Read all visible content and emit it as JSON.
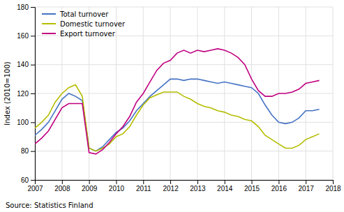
{
  "chart_data": {
    "type": "line",
    "ylabel": "Index (2010=100)",
    "annotations": [
      "Source: Statistics Finland"
    ],
    "x": [
      2007.0,
      2007.25,
      2007.5,
      2007.75,
      2008.0,
      2008.25,
      2008.5,
      2008.75,
      2009.0,
      2009.25,
      2009.5,
      2009.75,
      2010.0,
      2010.25,
      2010.5,
      2010.75,
      2011.0,
      2011.25,
      2011.5,
      2011.75,
      2012.0,
      2012.25,
      2012.5,
      2012.75,
      2013.0,
      2013.25,
      2013.5,
      2013.75,
      2014.0,
      2014.25,
      2014.5,
      2014.75,
      2015.0,
      2015.25,
      2015.5,
      2015.75,
      2016.0,
      2016.25,
      2016.5,
      2016.75,
      2017.0,
      2017.25,
      2017.5
    ],
    "series": [
      {
        "name": "Total turnover",
        "color": "#4472c4",
        "values": [
          91,
          95,
          100,
          108,
          116,
          120,
          118,
          115,
          82,
          80,
          83,
          88,
          93,
          96,
          101,
          108,
          113,
          118,
          122,
          126,
          130,
          130,
          129,
          130,
          130,
          129,
          128,
          127,
          128,
          127,
          126,
          125,
          124,
          120,
          112,
          105,
          100,
          99,
          100,
          103,
          108,
          108,
          109
        ]
      },
      {
        "name": "Domestic turnover",
        "color": "#b5bd00",
        "values": [
          96,
          100,
          105,
          114,
          120,
          124,
          126,
          118,
          82,
          80,
          82,
          85,
          90,
          92,
          97,
          105,
          112,
          117,
          119,
          121,
          121,
          121,
          118,
          116,
          113,
          111,
          110,
          108,
          107,
          105,
          104,
          102,
          101,
          97,
          91,
          88,
          85,
          82,
          82,
          84,
          88,
          90,
          92
        ]
      },
      {
        "name": "Export turnover",
        "color": "#c00080",
        "values": [
          85,
          89,
          94,
          102,
          110,
          113,
          113,
          113,
          79,
          78,
          81,
          86,
          92,
          97,
          104,
          114,
          120,
          128,
          136,
          141,
          143,
          148,
          150,
          148,
          150,
          149,
          150,
          151,
          150,
          148,
          145,
          140,
          130,
          122,
          118,
          118,
          120,
          120,
          121,
          123,
          127,
          128,
          129
        ]
      }
    ],
    "xlim": [
      2007.0,
      2018.0
    ],
    "ylim": [
      60,
      180
    ],
    "xticks": [
      2007,
      2008,
      2009,
      2010,
      2011,
      2012,
      2013,
      2014,
      2015,
      2016,
      2017,
      2018
    ],
    "yticks": [
      60,
      80,
      100,
      120,
      140,
      160,
      180
    ],
    "grid": true,
    "legend": "top-left"
  }
}
